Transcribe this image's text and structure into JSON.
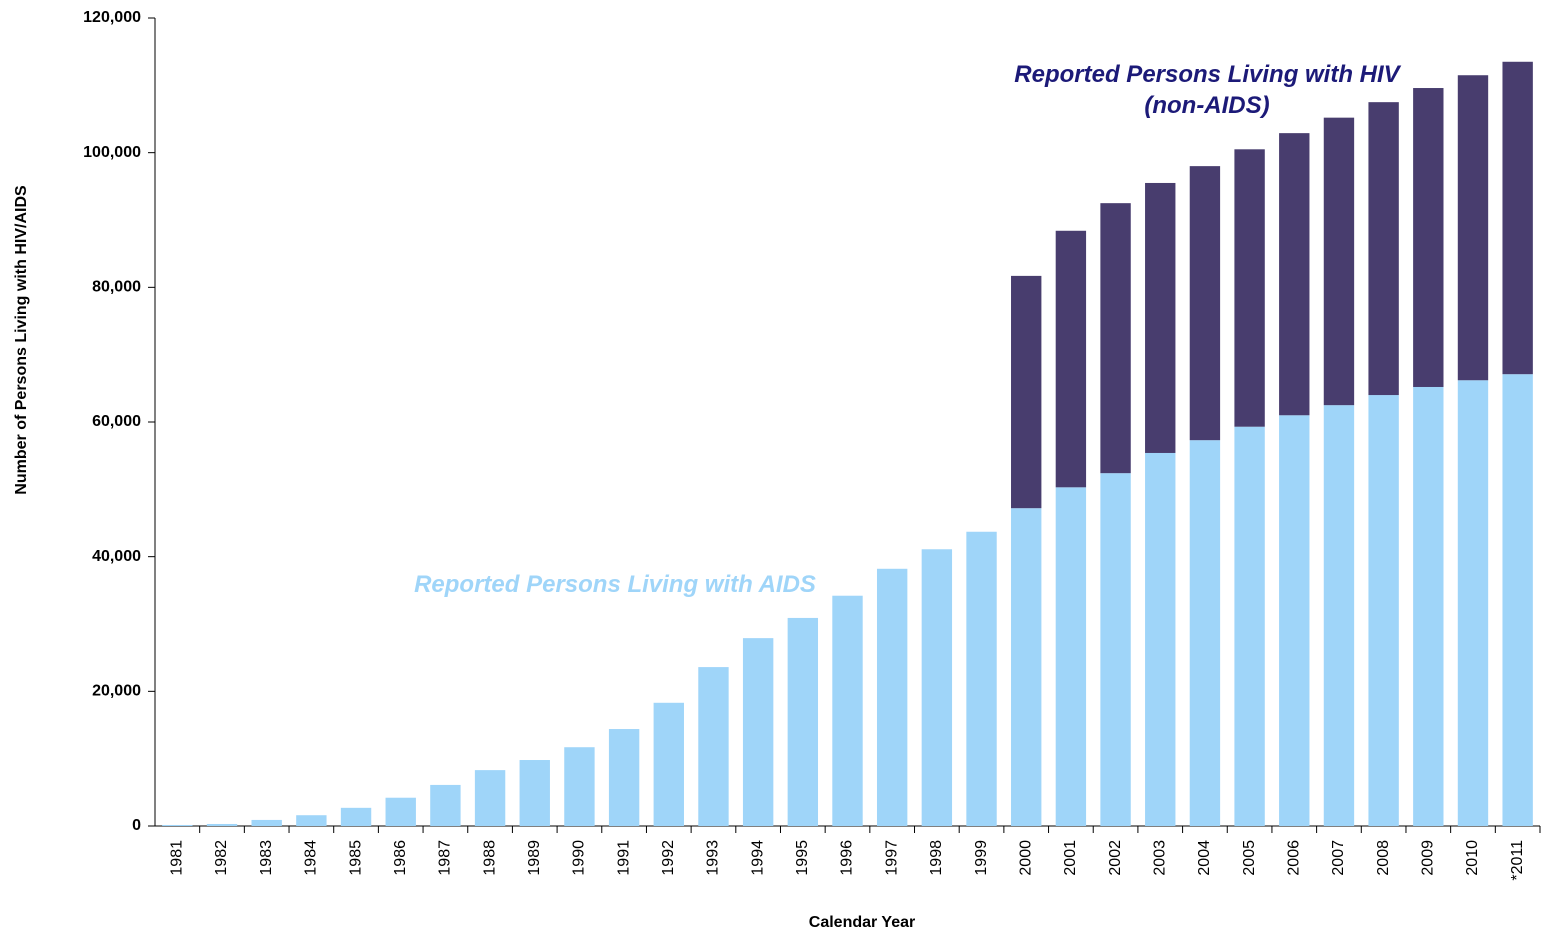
{
  "chart_data": {
    "type": "stacked_bar",
    "xlabel": "Calendar Year",
    "ylabel": "Number of Persons Living with HIV/AIDS",
    "categories": [
      "1981",
      "1982",
      "1983",
      "1984",
      "1985",
      "1986",
      "1987",
      "1988",
      "1989",
      "1990",
      "1991",
      "1992",
      "1993",
      "1994",
      "1995",
      "1996",
      "1997",
      "1998",
      "1999",
      "2000",
      "2001",
      "2002",
      "2003",
      "2004",
      "2005",
      "2006",
      "2007",
      "2008",
      "2009",
      "2010",
      "*2011"
    ],
    "series": [
      {
        "name": "Reported Persons Living with AIDS",
        "color": "#9fd5f9",
        "label_color": "#9fd5f9",
        "values": [
          150,
          300,
          900,
          1600,
          2700,
          4200,
          6100,
          8300,
          9800,
          11700,
          14400,
          18300,
          23600,
          27900,
          30900,
          34200,
          38200,
          41100,
          43700,
          47200,
          50300,
          52400,
          55400,
          57300,
          59300,
          61000,
          62500,
          64000,
          65200,
          66200,
          67100
        ]
      },
      {
        "name": "Reported Persons Living with HIV (non-AIDS)",
        "color": "#483d6e",
        "label_color": "#1c1a78",
        "values": [
          null,
          null,
          null,
          null,
          null,
          null,
          null,
          null,
          null,
          null,
          null,
          null,
          null,
          null,
          null,
          null,
          null,
          null,
          null,
          34500,
          38100,
          40100,
          40100,
          40700,
          41200,
          41900,
          42700,
          43500,
          44400,
          45300,
          46400
        ]
      }
    ],
    "ylim": [
      0,
      120000
    ],
    "yticks": [
      0,
      {
        "value": 20000,
        "label": "20,000"
      },
      {
        "value": 40000,
        "label": "40,000"
      },
      {
        "value": 60000,
        "label": "60,000"
      },
      {
        "value": 80000,
        "label": "80,000"
      },
      {
        "value": 100000,
        "label": "100,000"
      },
      {
        "value": 120000,
        "label": "120,000"
      }
    ],
    "grid": false
  }
}
